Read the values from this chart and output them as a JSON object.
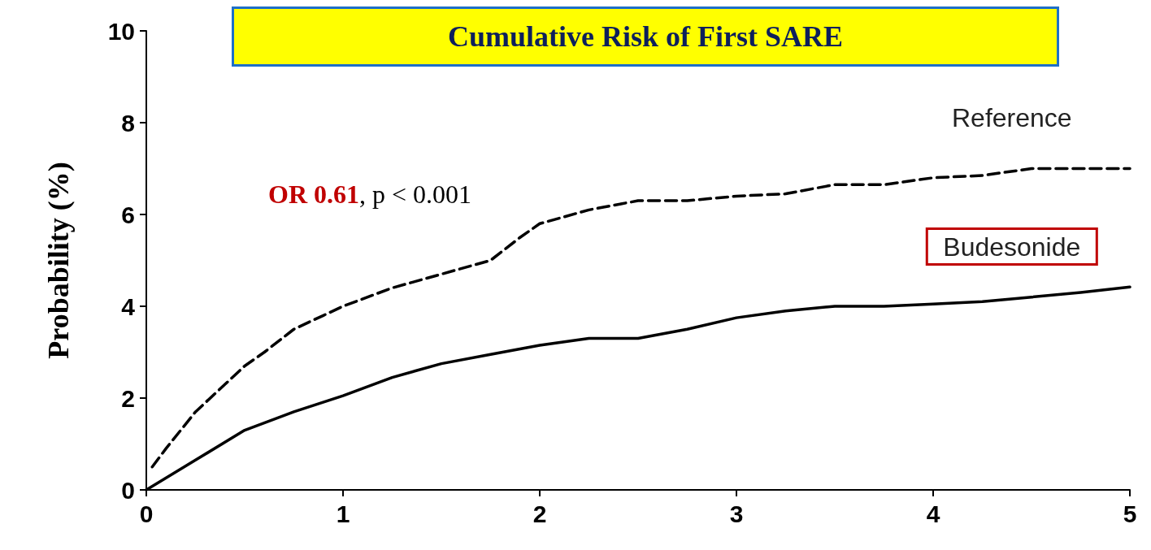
{
  "chart_data": {
    "type": "line",
    "title": "Cumulative Risk of First SARE",
    "ylabel": "Probability (%)",
    "annotations": [
      "OR 0.61, p < 0.001"
    ],
    "xlim": [
      0,
      5
    ],
    "xticks": [
      0,
      1,
      2,
      3,
      4,
      5
    ],
    "ylim": [
      0,
      10
    ],
    "yticks": [
      0,
      2,
      4,
      6,
      8,
      10
    ],
    "grid": false,
    "legend": false,
    "marker": "none",
    "series": [
      {
        "name": "Reference",
        "color": "#000000",
        "line_style": "dashed",
        "x": [
          0.03,
          0.1,
          0.25,
          0.4,
          0.5,
          0.6,
          0.75,
          0.9,
          1,
          1.25,
          1.5,
          1.75,
          1.9,
          2,
          2.25,
          2.5,
          2.75,
          3,
          3.25,
          3.5,
          3.75,
          4,
          4.25,
          4.5,
          4.75,
          5
        ],
        "values": [
          0.5,
          0.9,
          1.7,
          2.3,
          2.7,
          3.0,
          3.5,
          3.8,
          4.0,
          4.4,
          4.7,
          5.0,
          5.5,
          5.8,
          6.1,
          6.3,
          6.3,
          6.4,
          6.45,
          6.65,
          6.65,
          6.8,
          6.85,
          7.0,
          7.0,
          7.0
        ]
      },
      {
        "name": "Budesonide",
        "color": "#000000",
        "line_style": "solid",
        "x": [
          0,
          0.25,
          0.5,
          0.75,
          1,
          1.25,
          1.5,
          1.75,
          2,
          2.25,
          2.5,
          2.75,
          3,
          3.25,
          3.5,
          3.75,
          4,
          4.25,
          4.5,
          4.75,
          5
        ],
        "values": [
          0,
          0.65,
          1.3,
          1.7,
          2.05,
          2.45,
          2.75,
          2.95,
          3.15,
          3.3,
          3.3,
          3.5,
          3.75,
          3.9,
          4.0,
          4.0,
          4.05,
          4.1,
          4.2,
          4.3,
          4.42
        ]
      }
    ]
  }
}
